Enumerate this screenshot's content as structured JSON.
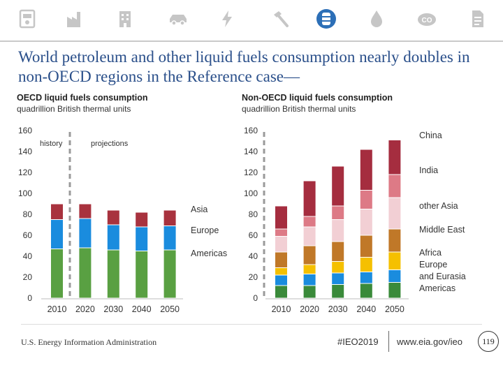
{
  "header": {
    "title": "World petroleum and other liquid fuels consumption nearly doubles in non-OECD regions in the Reference case—",
    "icons": [
      "electricity-meter-icon",
      "factory-icon",
      "building-icon",
      "car-icon",
      "lightning-icon",
      "hammer-icon",
      "oil-barrel-icon",
      "drop-icon",
      "flame-icon",
      "co2-icon",
      "document-icon"
    ],
    "active_icon": "oil-barrel-icon",
    "active_color": "#2c6fb7",
    "inactive_color": "#c6c6c6"
  },
  "panels": {
    "oecd": {
      "title": "OECD liquid fuels consumption",
      "units": "quadrillion British thermal units"
    },
    "nonoecd": {
      "title": "Non-OECD liquid fuels consumption",
      "units": "quadrillion British thermal units"
    }
  },
  "chart_data": [
    {
      "type": "bar",
      "stacked": true,
      "title": "OECD liquid fuels consumption",
      "ylabel": "quadrillion British thermal units",
      "ylim": [
        0,
        160
      ],
      "yticks": [
        0,
        20,
        40,
        60,
        80,
        100,
        120,
        140,
        160
      ],
      "categories": [
        "2010",
        "2020",
        "2030",
        "2040",
        "2050"
      ],
      "annotations": [
        "history",
        "projections"
      ],
      "series": [
        {
          "name": "Americas",
          "color": "#59a042",
          "values": [
            47,
            48,
            46,
            45,
            46
          ]
        },
        {
          "name": "Europe",
          "color": "#1a8cde",
          "values": [
            28,
            28,
            24,
            23,
            23
          ]
        },
        {
          "name": "Asia",
          "color": "#a8323e",
          "values": [
            15,
            14,
            14,
            14,
            15
          ]
        }
      ]
    },
    {
      "type": "bar",
      "stacked": true,
      "title": "Non-OECD liquid fuels consumption",
      "ylabel": "quadrillion British thermal units",
      "ylim": [
        0,
        160
      ],
      "yticks": [
        0,
        20,
        40,
        60,
        80,
        100,
        120,
        140,
        160
      ],
      "categories": [
        "2010",
        "2020",
        "2030",
        "2040",
        "2050"
      ],
      "series": [
        {
          "name": "Americas",
          "color": "#3a8a3a",
          "values": [
            12,
            12,
            13,
            14,
            15
          ]
        },
        {
          "name": "Europe and Eurasia",
          "color": "#1a8cde",
          "values": [
            10,
            11,
            11,
            11,
            12
          ]
        },
        {
          "name": "Africa",
          "color": "#f5c000",
          "values": [
            7,
            9,
            11,
            14,
            17
          ]
        },
        {
          "name": "Middle East",
          "color": "#c07828",
          "values": [
            15,
            18,
            19,
            21,
            22
          ]
        },
        {
          "name": "other Asia",
          "color": "#f2cfd4",
          "values": [
            15,
            18,
            21,
            25,
            30
          ]
        },
        {
          "name": "India",
          "color": "#dd7a86",
          "values": [
            7,
            10,
            13,
            18,
            22
          ]
        },
        {
          "name": "China",
          "color": "#a52d3f",
          "values": [
            22,
            34,
            38,
            39,
            33
          ]
        }
      ]
    }
  ],
  "footer": {
    "agency": "U.S. Energy Information Administration",
    "hashtag": "#IEO2019",
    "url": "www.eia.gov/ieo",
    "page": "119"
  }
}
